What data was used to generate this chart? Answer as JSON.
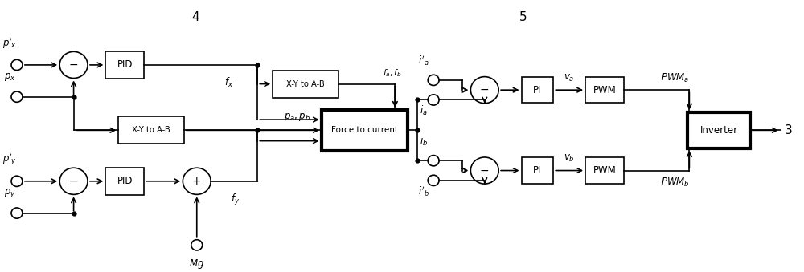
{
  "fig_width": 10.0,
  "fig_height": 3.39,
  "dpi": 100,
  "bg_color": "#ffffff",
  "label_4": "4",
  "label_5": "5",
  "label_3": "3"
}
